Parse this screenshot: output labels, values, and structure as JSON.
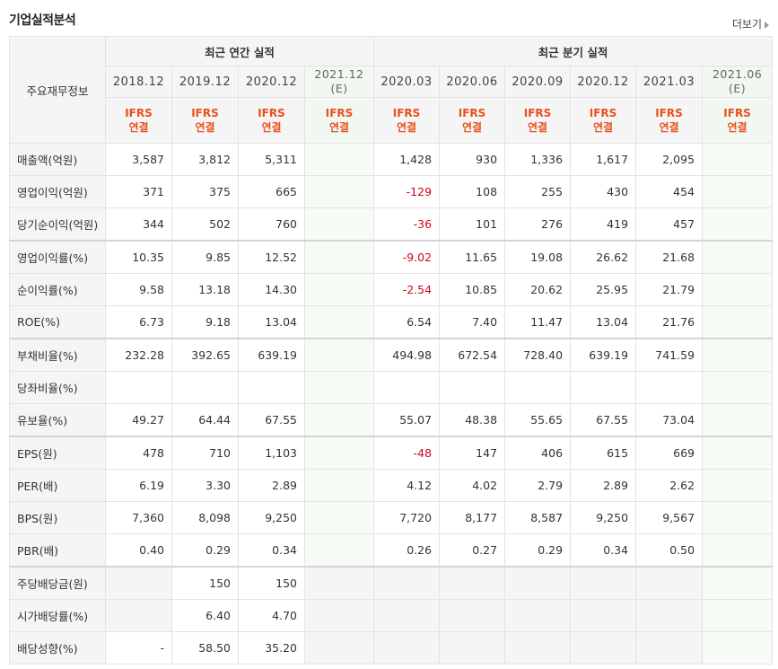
{
  "title": "기업실적분석",
  "more_label": "더보기",
  "header": {
    "row_label": "주요재무정보",
    "annual_title": "최근 연간 실적",
    "quarter_title": "최근 분기 실적",
    "annual_periods": [
      "2018.12",
      "2019.12",
      "2020.12",
      "2021.12"
    ],
    "annual_estimate_mark": "(E)",
    "quarter_periods": [
      "2020.03",
      "2020.06",
      "2020.09",
      "2020.12",
      "2021.03",
      "2021.06"
    ],
    "quarter_estimate_mark": "(E)",
    "standard_line1": "IFRS",
    "standard_line2": "연결"
  },
  "rows": [
    {
      "label": "매출액(억원)",
      "values": [
        "3,587",
        "3,812",
        "5,311",
        "",
        "1,428",
        "930",
        "1,336",
        "1,617",
        "2,095",
        ""
      ]
    },
    {
      "label": "영업이익(억원)",
      "values": [
        "371",
        "375",
        "665",
        "",
        "-129",
        "108",
        "255",
        "430",
        "454",
        ""
      ]
    },
    {
      "label": "당기순이익(억원)",
      "values": [
        "344",
        "502",
        "760",
        "",
        "-36",
        "101",
        "276",
        "419",
        "457",
        ""
      ]
    },
    {
      "label": "영업이익률(%)",
      "values": [
        "10.35",
        "9.85",
        "12.52",
        "",
        "-9.02",
        "11.65",
        "19.08",
        "26.62",
        "21.68",
        ""
      ]
    },
    {
      "label": "순이익률(%)",
      "values": [
        "9.58",
        "13.18",
        "14.30",
        "",
        "-2.54",
        "10.85",
        "20.62",
        "25.95",
        "21.79",
        ""
      ]
    },
    {
      "label": "ROE(%)",
      "values": [
        "6.73",
        "9.18",
        "13.04",
        "",
        "6.54",
        "7.40",
        "11.47",
        "13.04",
        "21.76",
        ""
      ]
    },
    {
      "label": "부채비율(%)",
      "values": [
        "232.28",
        "392.65",
        "639.19",
        "",
        "494.98",
        "672.54",
        "728.40",
        "639.19",
        "741.59",
        ""
      ]
    },
    {
      "label": "당좌비율(%)",
      "values": [
        "",
        "",
        "",
        "",
        "",
        "",
        "",
        "",
        "",
        ""
      ]
    },
    {
      "label": "유보율(%)",
      "values": [
        "49.27",
        "64.44",
        "67.55",
        "",
        "55.07",
        "48.38",
        "55.65",
        "67.55",
        "73.04",
        ""
      ]
    },
    {
      "label": "EPS(원)",
      "values": [
        "478",
        "710",
        "1,103",
        "",
        "-48",
        "147",
        "406",
        "615",
        "669",
        ""
      ]
    },
    {
      "label": "PER(배)",
      "values": [
        "6.19",
        "3.30",
        "2.89",
        "",
        "4.12",
        "4.02",
        "2.79",
        "2.89",
        "2.62",
        ""
      ]
    },
    {
      "label": "BPS(원)",
      "values": [
        "7,360",
        "8,098",
        "9,250",
        "",
        "7,720",
        "8,177",
        "8,587",
        "9,250",
        "9,567",
        ""
      ]
    },
    {
      "label": "PBR(배)",
      "values": [
        "0.40",
        "0.29",
        "0.34",
        "",
        "0.26",
        "0.27",
        "0.29",
        "0.34",
        "0.50",
        ""
      ]
    },
    {
      "label": "주당배당금(원)",
      "values": [
        "",
        "150",
        "150",
        "",
        "",
        "",
        "",
        "",
        "",
        ""
      ]
    },
    {
      "label": "시가배당률(%)",
      "values": [
        "",
        "6.40",
        "4.70",
        "",
        "",
        "",
        "",
        "",
        "",
        ""
      ]
    },
    {
      "label": "배당성향(%)",
      "values": [
        "-",
        "58.50",
        "35.20",
        "",
        "",
        "",
        "",
        "",
        "",
        ""
      ]
    }
  ],
  "colors": {
    "negative": "#d0021b",
    "ifrs": "#e8501d",
    "estimate_bg": "#f6fbf6"
  }
}
